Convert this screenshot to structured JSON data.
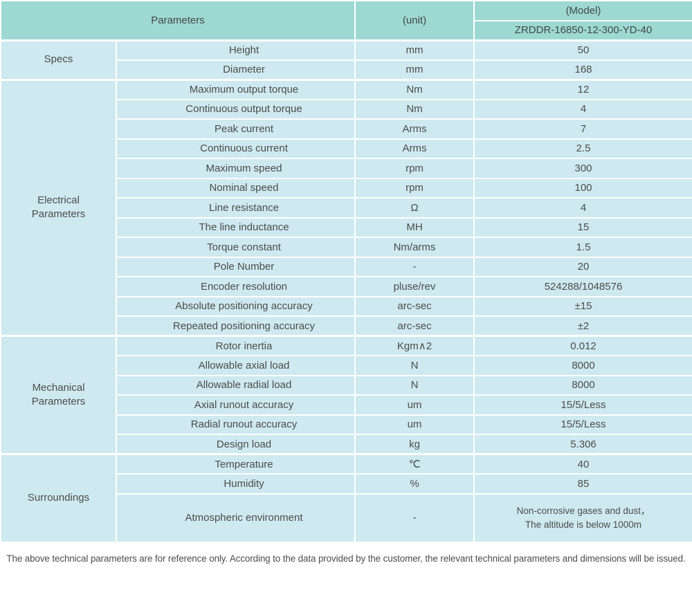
{
  "colors": {
    "header_bg": "#9ed8d2",
    "row_bg": "#cee9f0",
    "grid_line": "#ffffff",
    "text": "#4c4c4c"
  },
  "table": {
    "header": {
      "parameters_label": "Parameters",
      "unit_label": "(unit)",
      "model_label": "(Model)",
      "model_value": "ZRDDR-16850-12-300-YD-40"
    },
    "sections": [
      {
        "name": "Specs",
        "rows": [
          {
            "param": "Height",
            "unit": "mm",
            "value": "50"
          },
          {
            "param": "Diameter",
            "unit": "mm",
            "value": "168"
          }
        ]
      },
      {
        "name": "Electrical\nParameters",
        "rows": [
          {
            "param": "Maximum output torque",
            "unit": "Nm",
            "value": "12"
          },
          {
            "param": "Continuous output torque",
            "unit": "Nm",
            "value": "4"
          },
          {
            "param": "Peak current",
            "unit": "Arms",
            "value": "7"
          },
          {
            "param": "Continuous current",
            "unit": "Arms",
            "value": "2.5"
          },
          {
            "param": "Maximum speed",
            "unit": "rpm",
            "value": "300"
          },
          {
            "param": "Nominal speed",
            "unit": "rpm",
            "value": "100"
          },
          {
            "param": "Line resistance",
            "unit": "Ω",
            "value": "4"
          },
          {
            "param": "The line inductance",
            "unit": "MH",
            "value": "15"
          },
          {
            "param": "Torque constant",
            "unit": "Nm/arms",
            "value": "1.5"
          },
          {
            "param": "Pole Number",
            "unit": "-",
            "value": "20"
          },
          {
            "param": "Encoder resolution",
            "unit": "pluse/rev",
            "value": "524288/1048576"
          },
          {
            "param": "Absolute positioning accuracy",
            "unit": "arc-sec",
            "value": "±15"
          },
          {
            "param": "Repeated positioning accuracy",
            "unit": "arc-sec",
            "value": "±2"
          }
        ]
      },
      {
        "name": "Mechanical\nParameters",
        "rows": [
          {
            "param": "Rotor inertia",
            "unit": "Kgm∧2",
            "value": "0.012"
          },
          {
            "param": "Allowable axial load",
            "unit": "N",
            "value": "8000"
          },
          {
            "param": "Allowable radial load",
            "unit": "N",
            "value": "8000"
          },
          {
            "param": "Axial runout accuracy",
            "unit": "um",
            "value": "15/5/Less"
          },
          {
            "param": "Radial runout accuracy",
            "unit": "um",
            "value": "15/5/Less"
          },
          {
            "param": "Design load",
            "unit": "kg",
            "value": "5.306"
          }
        ]
      },
      {
        "name": "Surroundings",
        "rows": [
          {
            "param": "Temperature",
            "unit": "℃",
            "value": "40"
          },
          {
            "param": "Humidity",
            "unit": "%",
            "value": "85"
          },
          {
            "param": "Atmospheric environment",
            "unit": "-",
            "value": "Non-corrosive gases and dust，\nThe altitude is below 1000m"
          }
        ]
      }
    ]
  },
  "footer": {
    "note": "The above technical parameters are for reference only. According to the data provided by the customer, the relevant technical parameters and dimensions will be issued."
  }
}
